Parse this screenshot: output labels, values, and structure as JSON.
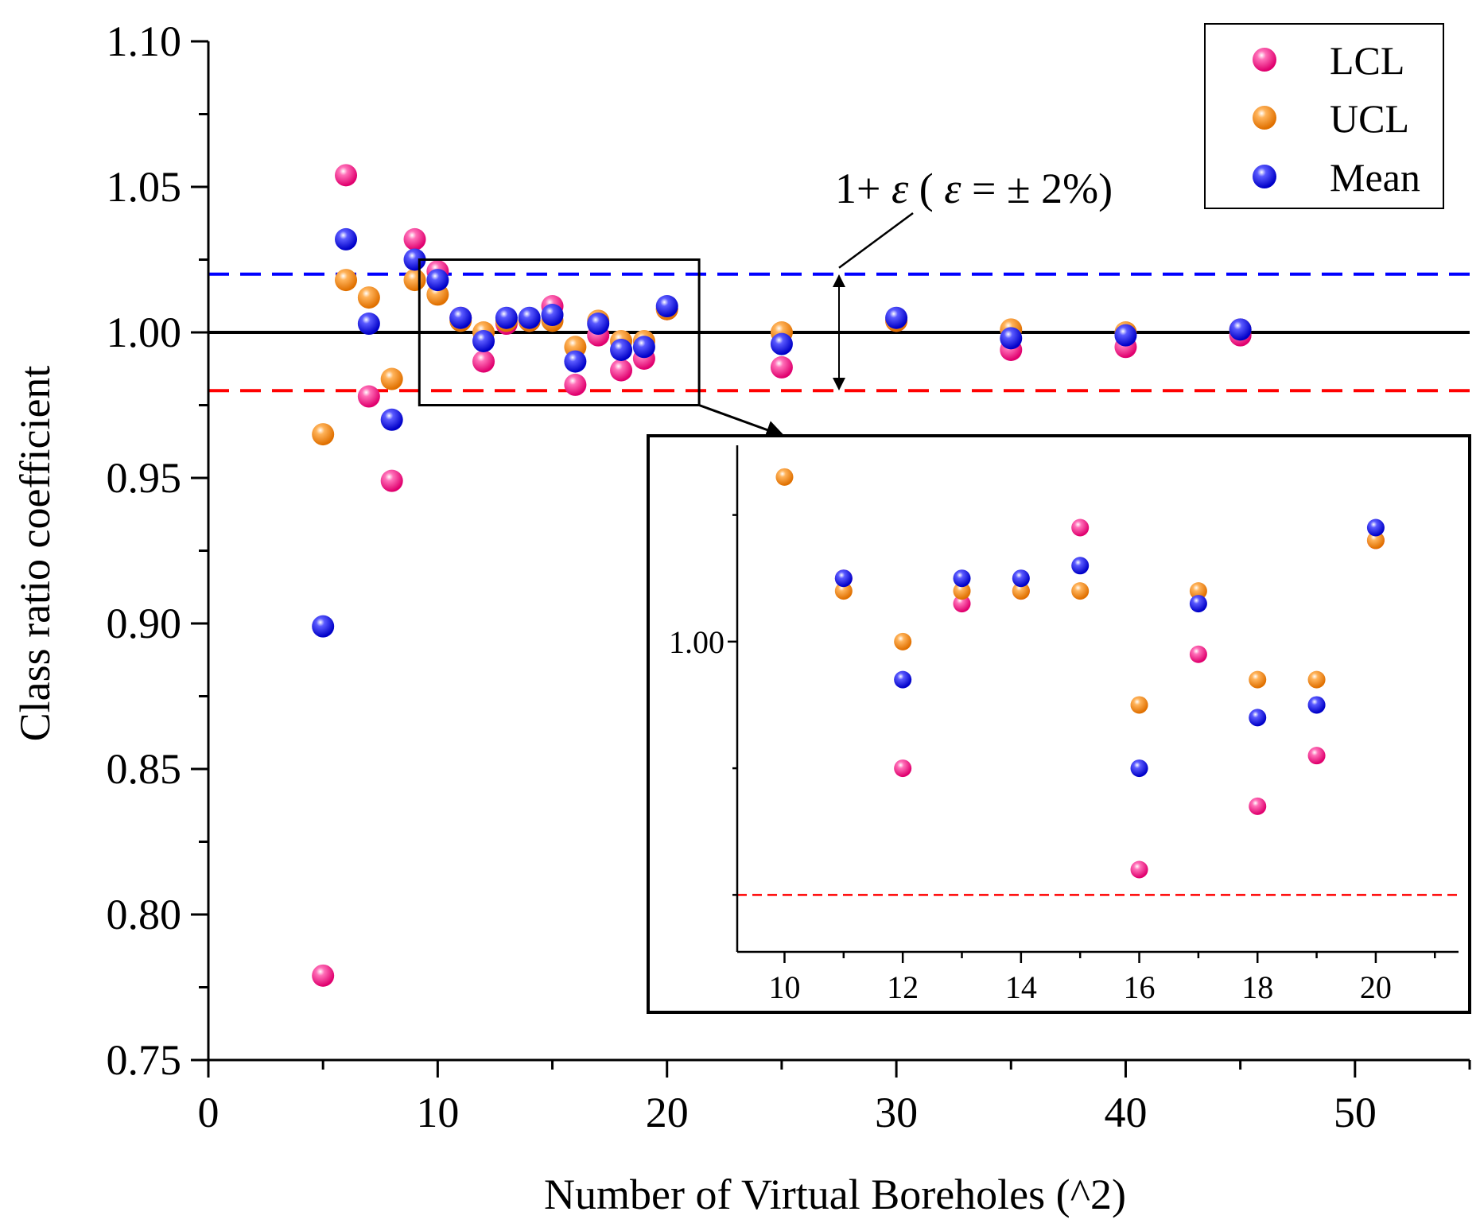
{
  "chart_data": {
    "type": "scatter",
    "xlabel": "Number of Virtual Boreholes (^2)",
    "ylabel": "Class ratio coefficient",
    "xlim": [
      0,
      55
    ],
    "ylim": [
      0.75,
      1.1
    ],
    "x_ticks": [
      "0",
      "10",
      "20",
      "30",
      "40",
      "50"
    ],
    "y_ticks": [
      "0.75",
      "0.80",
      "0.85",
      "0.90",
      "0.95",
      "1.00",
      "1.05",
      "1.10"
    ],
    "reference_lines": [
      {
        "name": "upper",
        "value": 1.02,
        "color": "#0000ff",
        "style": "dashed"
      },
      {
        "name": "unity",
        "value": 1.0,
        "color": "#000000",
        "style": "solid"
      },
      {
        "name": "lower",
        "value": 0.98,
        "color": "#ff0000",
        "style": "dashed"
      }
    ],
    "annotation": {
      "prefix": "1+ ",
      "eps": "ε",
      "open": " ( ",
      "eps2": "ε",
      "rest": " = ± 2%)"
    },
    "legend": {
      "position": "top-right"
    },
    "series": [
      {
        "name": "LCL",
        "color": "#ff1f8f",
        "x": [
          5,
          6,
          7,
          8,
          9,
          10,
          11,
          12,
          13,
          14,
          15,
          16,
          17,
          18,
          19,
          20,
          25,
          30,
          35,
          40,
          45
        ],
        "y": [
          0.779,
          1.054,
          0.978,
          0.949,
          1.032,
          1.021,
          1.005,
          0.99,
          1.003,
          1.004,
          1.009,
          0.982,
          0.999,
          0.987,
          0.991,
          1.008,
          0.988,
          1.004,
          0.994,
          0.995,
          0.999
        ]
      },
      {
        "name": "UCL",
        "color": "#ff8c1a",
        "x": [
          5,
          6,
          7,
          8,
          9,
          10,
          11,
          12,
          13,
          14,
          15,
          16,
          17,
          18,
          19,
          20,
          25,
          30,
          35,
          40,
          45
        ],
        "y": [
          0.965,
          1.018,
          1.012,
          0.984,
          1.018,
          1.013,
          1.004,
          1.0,
          1.004,
          1.004,
          1.004,
          0.995,
          1.004,
          0.997,
          0.997,
          1.008,
          1.0,
          1.004,
          1.001,
          1.0,
          1.001
        ]
      },
      {
        "name": "Mean",
        "color": "#1010ff",
        "x": [
          5,
          6,
          7,
          8,
          9,
          10,
          11,
          12,
          13,
          14,
          15,
          16,
          17,
          18,
          19,
          20,
          25,
          30,
          35,
          40,
          45
        ],
        "y": [
          0.899,
          1.032,
          1.003,
          0.97,
          1.025,
          1.018,
          1.005,
          0.997,
          1.005,
          1.005,
          1.006,
          0.99,
          1.003,
          0.994,
          0.995,
          1.009,
          0.996,
          1.005,
          0.998,
          0.999,
          1.001
        ]
      }
    ],
    "inset": {
      "xlim": [
        9.2,
        21.4
      ],
      "ylim": [
        0.9755,
        1.0155
      ],
      "x_ticks": [
        "10",
        "12",
        "14",
        "16",
        "18",
        "20"
      ],
      "y_ticks": [
        "1.00"
      ],
      "x_range_shown": [
        10,
        20
      ]
    },
    "zoom_box": {
      "xlim": [
        9.2,
        21.4
      ],
      "ylim": [
        0.975,
        1.025
      ]
    }
  }
}
